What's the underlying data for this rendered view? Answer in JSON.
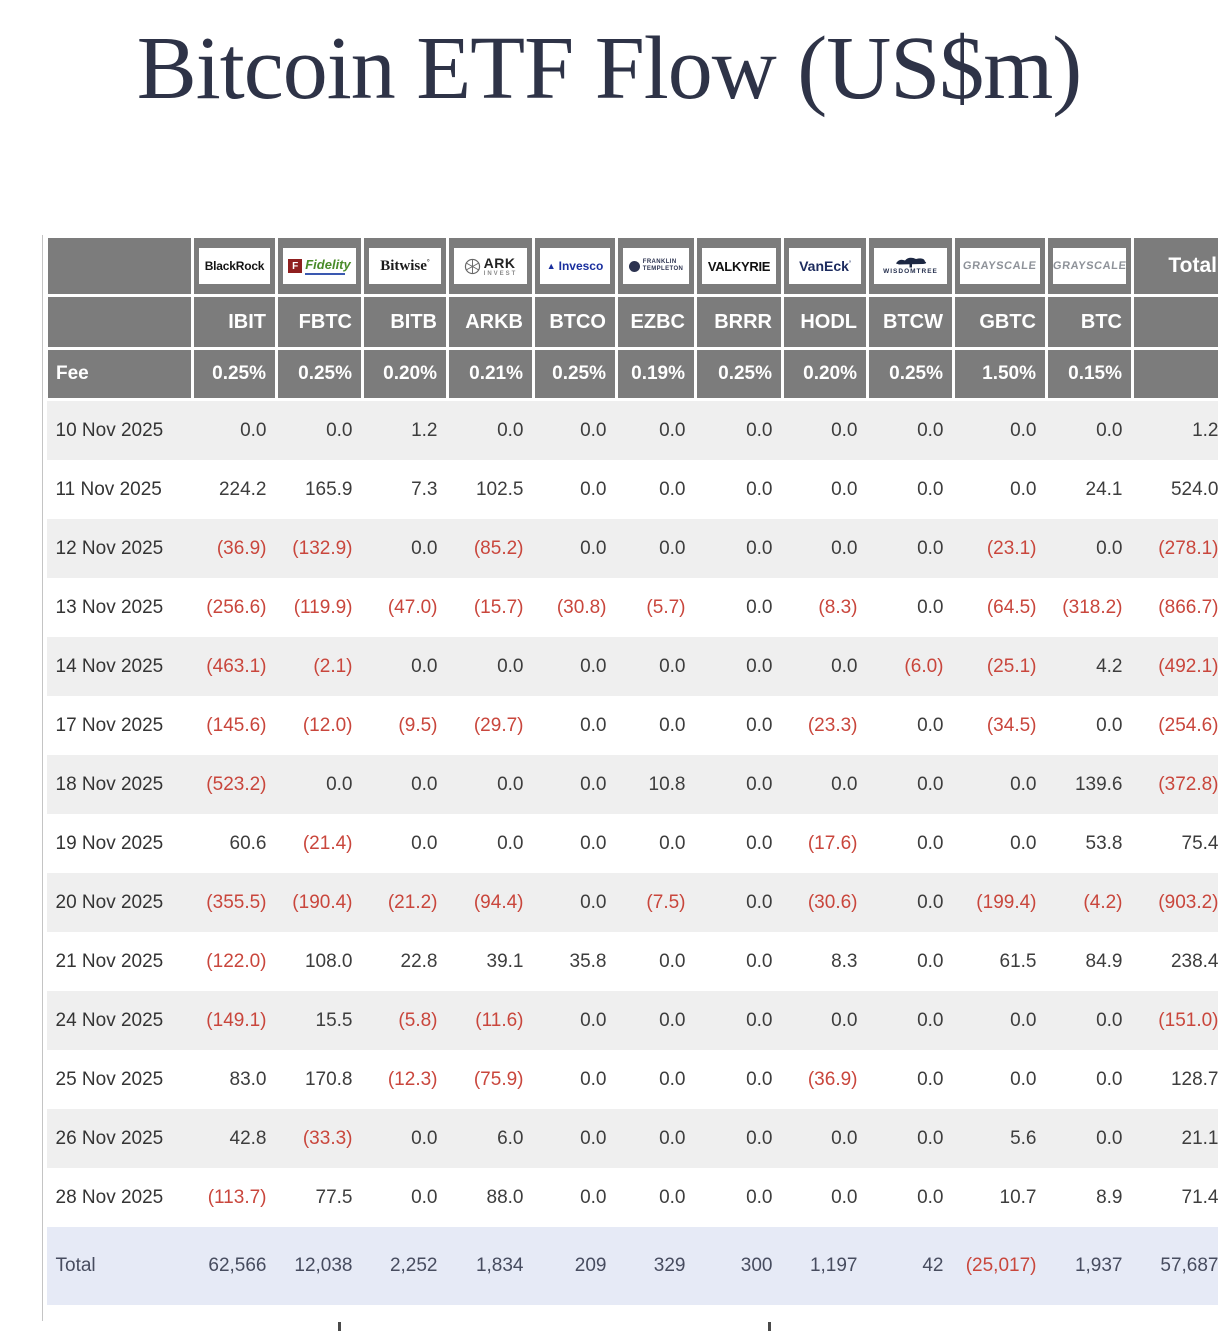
{
  "title": "Bitcoin ETF Flow (US$m)",
  "chart_data": {
    "type": "table",
    "title": "Bitcoin ETF Flow (US$m)",
    "units": "US$ millions; negative flows shown in red parentheses",
    "fee_label": "Fee",
    "total_header": "Total",
    "providers": [
      {
        "provider": "BlackRock",
        "logo": "blackrock",
        "ticker": "IBIT",
        "fee": "0.25%"
      },
      {
        "provider": "Fidelity",
        "logo": "fidelity",
        "ticker": "FBTC",
        "fee": "0.25%"
      },
      {
        "provider": "Bitwise",
        "logo": "bitwise",
        "ticker": "BITB",
        "fee": "0.20%"
      },
      {
        "provider": "ARK Invest",
        "logo": "ark",
        "ticker": "ARKB",
        "fee": "0.21%"
      },
      {
        "provider": "Invesco",
        "logo": "invesco",
        "ticker": "BTCO",
        "fee": "0.25%"
      },
      {
        "provider": "Franklin Templeton",
        "logo": "franklin",
        "ticker": "EZBC",
        "fee": "0.19%"
      },
      {
        "provider": "Valkyrie",
        "logo": "valkyrie",
        "ticker": "BRRR",
        "fee": "0.25%"
      },
      {
        "provider": "VanEck",
        "logo": "vaneck",
        "ticker": "HODL",
        "fee": "0.20%"
      },
      {
        "provider": "WisdomTree",
        "logo": "wisdomtree",
        "ticker": "BTCW",
        "fee": "0.25%"
      },
      {
        "provider": "Grayscale",
        "logo": "grayscale",
        "ticker": "GBTC",
        "fee": "1.50%"
      },
      {
        "provider": "Grayscale",
        "logo": "grayscale",
        "ticker": "BTC",
        "fee": "0.15%"
      }
    ],
    "rows": [
      {
        "date": "10 Nov 2025",
        "values": [
          "0.0",
          "0.0",
          "1.2",
          "0.0",
          "0.0",
          "0.0",
          "0.0",
          "0.0",
          "0.0",
          "0.0",
          "0.0"
        ],
        "total": "1.2"
      },
      {
        "date": "11 Nov 2025",
        "values": [
          "224.2",
          "165.9",
          "7.3",
          "102.5",
          "0.0",
          "0.0",
          "0.0",
          "0.0",
          "0.0",
          "0.0",
          "24.1"
        ],
        "total": "524.0"
      },
      {
        "date": "12 Nov 2025",
        "values": [
          "(36.9)",
          "(132.9)",
          "0.0",
          "(85.2)",
          "0.0",
          "0.0",
          "0.0",
          "0.0",
          "0.0",
          "(23.1)",
          "0.0"
        ],
        "total": "(278.1)"
      },
      {
        "date": "13 Nov 2025",
        "values": [
          "(256.6)",
          "(119.9)",
          "(47.0)",
          "(15.7)",
          "(30.8)",
          "(5.7)",
          "0.0",
          "(8.3)",
          "0.0",
          "(64.5)",
          "(318.2)"
        ],
        "total": "(866.7)"
      },
      {
        "date": "14 Nov 2025",
        "values": [
          "(463.1)",
          "(2.1)",
          "0.0",
          "0.0",
          "0.0",
          "0.0",
          "0.0",
          "0.0",
          "(6.0)",
          "(25.1)",
          "4.2"
        ],
        "total": "(492.1)"
      },
      {
        "date": "17 Nov 2025",
        "values": [
          "(145.6)",
          "(12.0)",
          "(9.5)",
          "(29.7)",
          "0.0",
          "0.0",
          "0.0",
          "(23.3)",
          "0.0",
          "(34.5)",
          "0.0"
        ],
        "total": "(254.6)"
      },
      {
        "date": "18 Nov 2025",
        "values": [
          "(523.2)",
          "0.0",
          "0.0",
          "0.0",
          "0.0",
          "10.8",
          "0.0",
          "0.0",
          "0.0",
          "0.0",
          "139.6"
        ],
        "total": "(372.8)"
      },
      {
        "date": "19 Nov 2025",
        "values": [
          "60.6",
          "(21.4)",
          "0.0",
          "0.0",
          "0.0",
          "0.0",
          "0.0",
          "(17.6)",
          "0.0",
          "0.0",
          "53.8"
        ],
        "total": "75.4"
      },
      {
        "date": "20 Nov 2025",
        "values": [
          "(355.5)",
          "(190.4)",
          "(21.2)",
          "(94.4)",
          "0.0",
          "(7.5)",
          "0.0",
          "(30.6)",
          "0.0",
          "(199.4)",
          "(4.2)"
        ],
        "total": "(903.2)"
      },
      {
        "date": "21 Nov 2025",
        "values": [
          "(122.0)",
          "108.0",
          "22.8",
          "39.1",
          "35.8",
          "0.0",
          "0.0",
          "8.3",
          "0.0",
          "61.5",
          "84.9"
        ],
        "total": "238.4"
      },
      {
        "date": "24 Nov 2025",
        "values": [
          "(149.1)",
          "15.5",
          "(5.8)",
          "(11.6)",
          "0.0",
          "0.0",
          "0.0",
          "0.0",
          "0.0",
          "0.0",
          "0.0"
        ],
        "total": "(151.0)"
      },
      {
        "date": "25 Nov 2025",
        "values": [
          "83.0",
          "170.8",
          "(12.3)",
          "(75.9)",
          "0.0",
          "0.0",
          "0.0",
          "(36.9)",
          "0.0",
          "0.0",
          "0.0"
        ],
        "total": "128.7"
      },
      {
        "date": "26 Nov 2025",
        "values": [
          "42.8",
          "(33.3)",
          "0.0",
          "6.0",
          "0.0",
          "0.0",
          "0.0",
          "0.0",
          "0.0",
          "5.6",
          "0.0"
        ],
        "total": "21.1"
      },
      {
        "date": "28 Nov 2025",
        "values": [
          "(113.7)",
          "77.5",
          "0.0",
          "88.0",
          "0.0",
          "0.0",
          "0.0",
          "0.0",
          "0.0",
          "10.7",
          "8.9"
        ],
        "total": "71.4"
      }
    ],
    "total_row": {
      "label": "Total",
      "values": [
        "62,566",
        "12,038",
        "2,252",
        "1,834",
        "209",
        "329",
        "300",
        "1,197",
        "42",
        "(25,017)",
        "1,937"
      ],
      "total": "57,687"
    }
  },
  "colors": {
    "title": "#2e3347",
    "header_bg": "#7c7c7c",
    "header_text": "#ffffff",
    "stripe_bg": "#efefef",
    "total_row_bg": "#e6eaf6",
    "negative": "#c9463c",
    "positive_text": "#3d3d3d"
  }
}
